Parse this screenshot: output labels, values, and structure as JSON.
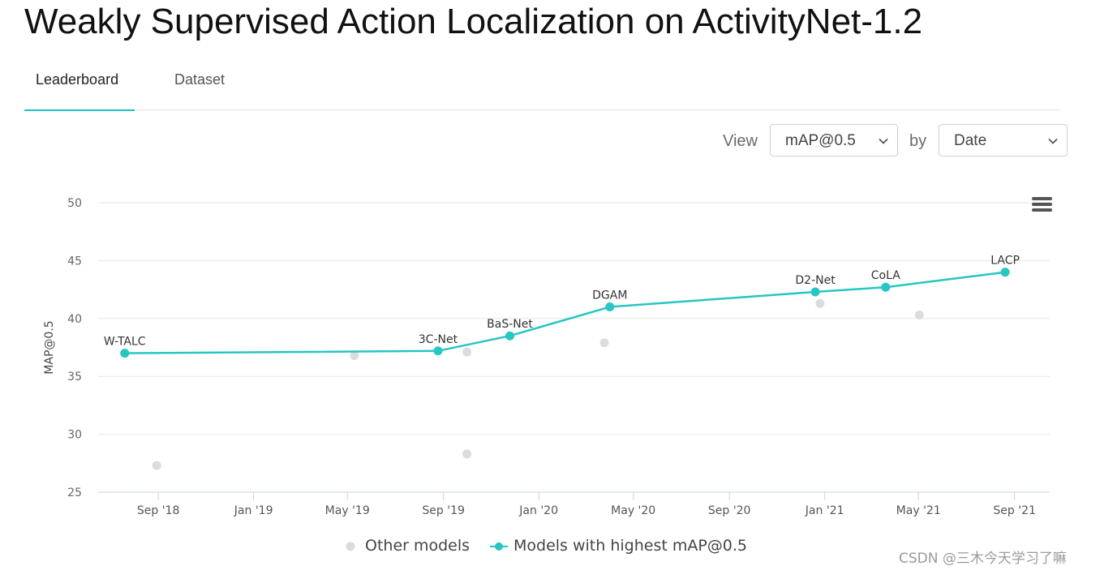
{
  "page": {
    "title": "Weakly Supervised Action Localization on ActivityNet-1.2",
    "tabs": [
      {
        "label": "Leaderboard",
        "active": true
      },
      {
        "label": "Dataset",
        "active": false
      }
    ]
  },
  "controls": {
    "view_label": "View",
    "view_value": "mAP@0.5",
    "by_label": "by",
    "by_value": "Date"
  },
  "chart_data": {
    "type": "line",
    "title": "",
    "xlabel": "",
    "ylabel": "MAP@0.5",
    "ylim": [
      25,
      50
    ],
    "yticks": [
      25,
      30,
      35,
      40,
      45,
      50
    ],
    "xlim": [
      "2018-06-16",
      "2021-10-16"
    ],
    "xticks": [
      {
        "date": "2018-09-01",
        "label": "Sep '18"
      },
      {
        "date": "2019-01-01",
        "label": "Jan '19"
      },
      {
        "date": "2019-05-01",
        "label": "May '19"
      },
      {
        "date": "2019-09-01",
        "label": "Sep '19"
      },
      {
        "date": "2020-01-01",
        "label": "Jan '20"
      },
      {
        "date": "2020-05-01",
        "label": "May '20"
      },
      {
        "date": "2020-09-01",
        "label": "Sep '20"
      },
      {
        "date": "2021-01-01",
        "label": "Jan '21"
      },
      {
        "date": "2021-05-01",
        "label": "May '21"
      },
      {
        "date": "2021-09-01",
        "label": "Sep '21"
      }
    ],
    "grid": true,
    "legend_position": "bottom",
    "series": [
      {
        "name": "Other models",
        "color": "#dcdcdc",
        "points": [
          {
            "date": "2018-08-30",
            "value": 27.3
          },
          {
            "date": "2019-05-10",
            "value": 36.8
          },
          {
            "date": "2019-10-01",
            "value": 37.1
          },
          {
            "date": "2019-10-01",
            "value": 28.3
          },
          {
            "date": "2020-03-25",
            "value": 37.9
          },
          {
            "date": "2020-12-26",
            "value": 41.3
          },
          {
            "date": "2021-05-02",
            "value": 40.3
          }
        ]
      },
      {
        "name": "Models with highest mAP@0.5",
        "color": "#26c6c2",
        "points": [
          {
            "date": "2018-07-20",
            "value": 37.0,
            "label": "W-TALC"
          },
          {
            "date": "2019-08-25",
            "value": 37.2,
            "label": "3C-Net"
          },
          {
            "date": "2019-11-25",
            "value": 38.5,
            "label": "BaS-Net"
          },
          {
            "date": "2020-04-01",
            "value": 41.0,
            "label": "DGAM"
          },
          {
            "date": "2020-12-20",
            "value": 42.3,
            "label": "D2-Net"
          },
          {
            "date": "2021-03-20",
            "value": 42.7,
            "label": "CoLA"
          },
          {
            "date": "2021-08-20",
            "value": 44.0,
            "label": "LACP"
          }
        ]
      }
    ]
  },
  "legend": {
    "other_label": "Other models",
    "best_label": "Models with highest mAP@0.5"
  },
  "watermark": "CSDN @三木今天学习了嘛"
}
